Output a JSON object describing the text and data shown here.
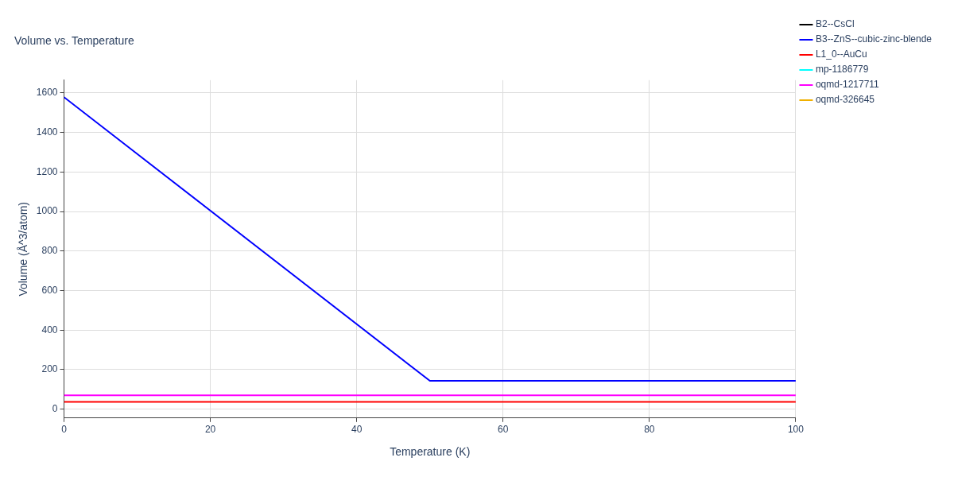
{
  "chart_data": {
    "type": "line",
    "title": "Volume vs. Temperature",
    "xlabel": "Temperature (K)",
    "ylabel": "Volume (Å^3/atom)",
    "x": [
      0,
      50,
      100
    ],
    "xlim": [
      0,
      100
    ],
    "xticks": [
      0,
      20,
      40,
      60,
      80,
      100
    ],
    "ylim": [
      -45,
      1665
    ],
    "yticks": [
      0,
      200,
      400,
      600,
      800,
      1000,
      1200,
      1400,
      1600
    ],
    "grid": true,
    "legend": "top right",
    "marker": "none",
    "line_style": "solid",
    "series": [
      {
        "name": "B2--CsCl",
        "color": "#000000",
        "values": [
          null,
          null,
          null
        ]
      },
      {
        "name": "B3--ZnS--cubic-zinc-blende",
        "color": "#0000ff",
        "values": [
          1579,
          143,
          143
        ]
      },
      {
        "name": "L1_0--AuCu",
        "color": "#ff0000",
        "values": [
          37,
          37,
          37
        ]
      },
      {
        "name": "mp-1186779",
        "color": "#00ffff",
        "values": [
          null,
          null,
          null
        ]
      },
      {
        "name": "oqmd-1217711",
        "color": "#ff00ff",
        "values": [
          70,
          70,
          70
        ]
      },
      {
        "name": "oqmd-326645",
        "color": "#f0b000",
        "values": [
          null,
          null,
          null
        ]
      }
    ]
  }
}
